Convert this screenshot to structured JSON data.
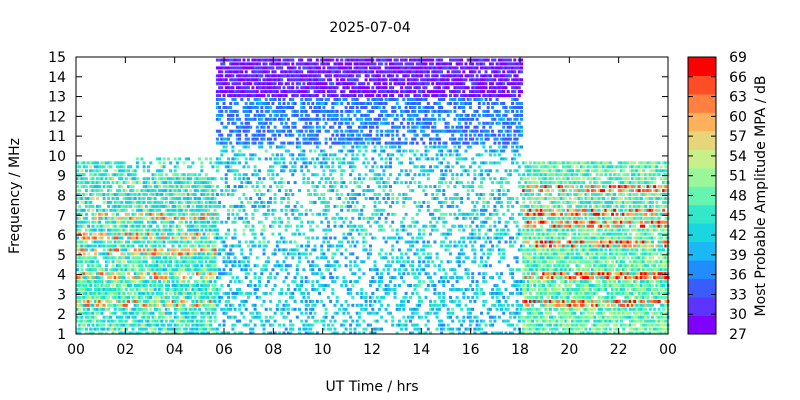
{
  "chart_data": {
    "type": "heatmap",
    "title": "2025-07-04",
    "xlabel": "UT Time / hrs",
    "ylabel": "Frequency / MHz",
    "colorbar_label": "Most Probable Amplitude MPA / dB",
    "xlim": [
      0,
      24
    ],
    "ylim": [
      1,
      15
    ],
    "x_tick_labels": [
      "00",
      "02",
      "04",
      "06",
      "08",
      "10",
      "12",
      "14",
      "16",
      "18",
      "20",
      "22",
      "00"
    ],
    "y_ticks": [
      1,
      2,
      3,
      4,
      5,
      6,
      7,
      8,
      9,
      10,
      11,
      12,
      13,
      14,
      15
    ],
    "colorbar_range": [
      27,
      69
    ],
    "colorbar_ticks": [
      27,
      30,
      33,
      36,
      39,
      42,
      45,
      48,
      51,
      54,
      57,
      60,
      63,
      66,
      69
    ],
    "colormap": [
      "#8000ff",
      "#5c33ff",
      "#3a5cff",
      "#1f8cff",
      "#1ab8f5",
      "#1ad6e0",
      "#33e8c8",
      "#66f5b0",
      "#99f79a",
      "#c8f08a",
      "#e6d67a",
      "#ffb05c",
      "#ff8040",
      "#ff4d26",
      "#ff0000"
    ],
    "regions": [
      {
        "x": [
          0,
          5.6
        ],
        "y": [
          1,
          10
        ],
        "level": "40-50 dB, bands of 55-66 dB near 2.5, 4, 5-6, 7 MHz"
      },
      {
        "x": [
          5.6,
          18
        ],
        "y": [
          1,
          10.5
        ],
        "level": "36-48 dB, sparse"
      },
      {
        "x": [
          5.6,
          18
        ],
        "y": [
          10.5,
          13
        ],
        "level": "33-39 dB"
      },
      {
        "x": [
          5.6,
          18
        ],
        "y": [
          13,
          15
        ],
        "level": "27-33 dB"
      },
      {
        "x": [
          18,
          24
        ],
        "y": [
          1,
          9.8
        ],
        "level": "42-54 dB, bands of 60-69 dB near 2.5, 4, 5.5, 7, 8.5 MHz"
      }
    ]
  }
}
